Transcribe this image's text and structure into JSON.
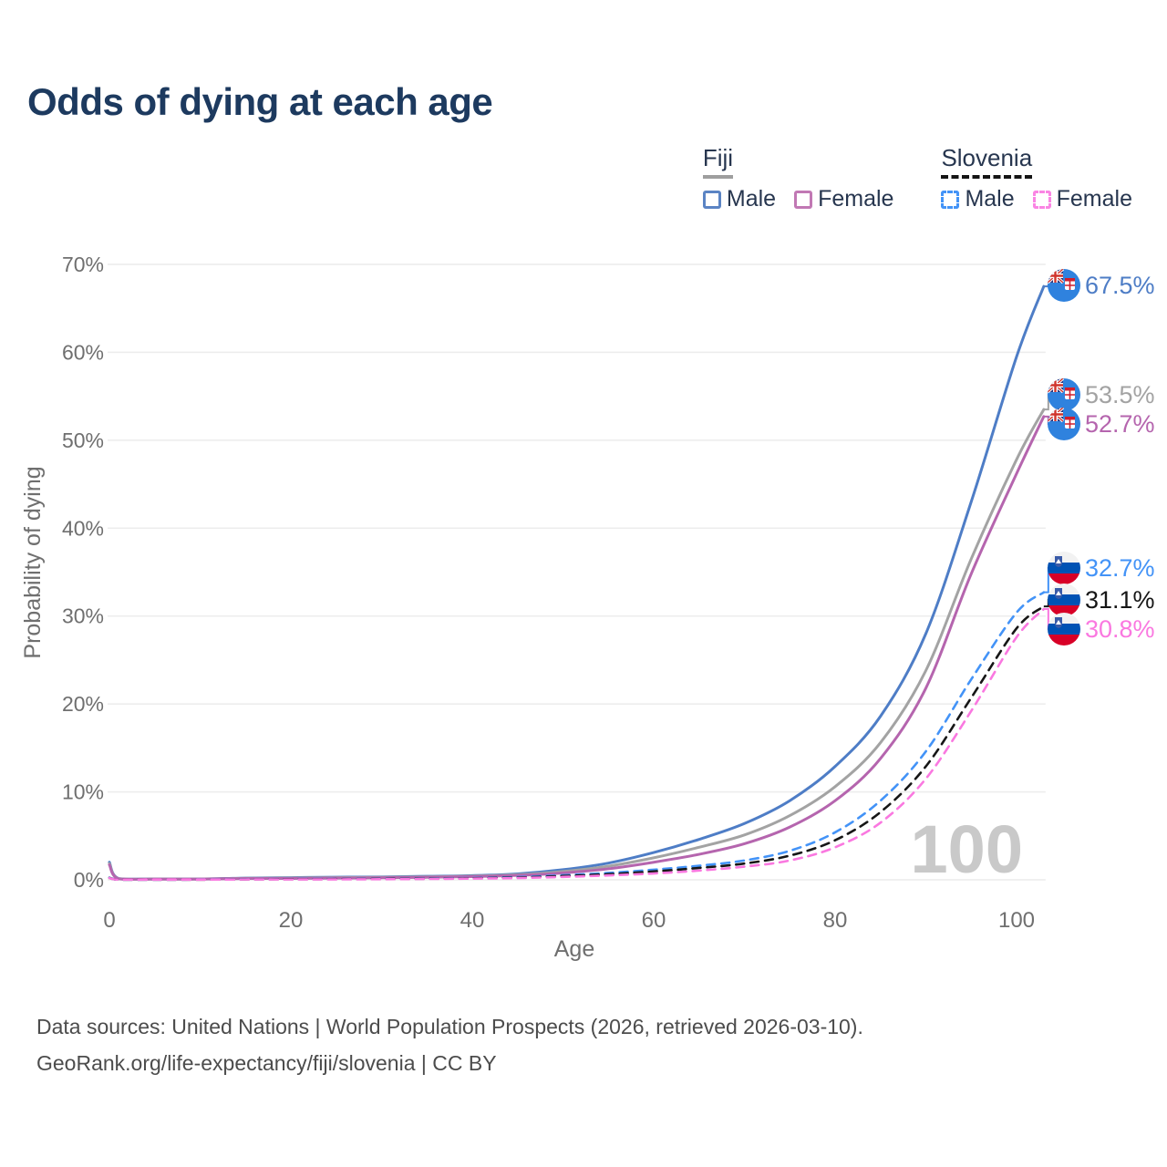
{
  "title": "Odds of dying at each age",
  "legend": {
    "groups": [
      {
        "label": "Fiji",
        "line_style": "solid",
        "underline_color": "#9e9e9e",
        "items": [
          {
            "label": "Male",
            "color": "#5b84c4",
            "dashed": false
          },
          {
            "label": "Female",
            "color": "#c178b4",
            "dashed": false
          }
        ]
      },
      {
        "label": "Slovenia",
        "line_style": "dashed",
        "underline_color": "#141414",
        "items": [
          {
            "label": "Male",
            "color": "#4393f7",
            "dashed": true
          },
          {
            "label": "Female",
            "color": "#fa85e4",
            "dashed": true
          }
        ]
      }
    ]
  },
  "watermark": "100",
  "footer": {
    "line1": "Data sources: United Nations | World Population Prospects (2026, retrieved 2026-03-10).",
    "line2": "GeoRank.org/life-expectancy/fiji/slovenia | CC BY"
  },
  "colors": {
    "grid": "#ececec",
    "axis_text": "#6f6f6f",
    "title": "#1d3a5f",
    "watermark": "#c9c9c9"
  },
  "chart_data": {
    "type": "line",
    "title": "Odds of dying at each age",
    "xlabel": "Age",
    "ylabel": "Probability of dying",
    "xlim": [
      0,
      103
    ],
    "ylim": [
      0,
      70
    ],
    "grid": "horizontal",
    "legend_position": "top-right",
    "x_ticks": [
      0,
      20,
      40,
      60,
      80,
      100
    ],
    "y_ticks": [
      0,
      10,
      20,
      30,
      40,
      50,
      60,
      70
    ],
    "y_tick_labels": [
      "0%",
      "10%",
      "20%",
      "30%",
      "40%",
      "50%",
      "60%",
      "70%"
    ],
    "ages": [
      0,
      1,
      5,
      10,
      15,
      20,
      25,
      30,
      35,
      40,
      45,
      50,
      55,
      60,
      65,
      70,
      75,
      80,
      85,
      90,
      95,
      100,
      103
    ],
    "series": [
      {
        "id": "fiji-male",
        "name": "Fiji Male",
        "country": "Fiji",
        "flag": "fiji",
        "color": "#4e7dc6",
        "dashed": false,
        "end_label": "67.5%",
        "end_value": 67.5,
        "values": [
          2.0,
          0.15,
          0.1,
          0.1,
          0.2,
          0.25,
          0.3,
          0.33,
          0.4,
          0.48,
          0.68,
          1.15,
          1.9,
          3.1,
          4.6,
          6.4,
          9.0,
          12.9,
          18.6,
          28.0,
          43.0,
          59.5,
          67.5
        ]
      },
      {
        "id": "fiji-both-sexes",
        "name": "Fiji",
        "country": "Fiji",
        "flag": "fiji",
        "color": "#a3a3a3",
        "dashed": false,
        "end_label": "53.5%",
        "end_value": 53.5,
        "values": [
          1.85,
          0.13,
          0.09,
          0.09,
          0.17,
          0.21,
          0.25,
          0.28,
          0.34,
          0.42,
          0.58,
          0.95,
          1.55,
          2.5,
          3.7,
          5.1,
          7.3,
          10.6,
          15.6,
          23.8,
          36.5,
          47.8,
          53.5
        ]
      },
      {
        "id": "fiji-female",
        "name": "Fiji Female",
        "country": "Fiji",
        "flag": "fiji",
        "color": "#b565ae",
        "dashed": false,
        "end_label": "52.7%",
        "end_value": 52.7,
        "values": [
          1.7,
          0.12,
          0.08,
          0.08,
          0.14,
          0.16,
          0.19,
          0.23,
          0.29,
          0.36,
          0.5,
          0.78,
          1.25,
          2.0,
          2.9,
          4.1,
          6.0,
          9.0,
          13.8,
          21.8,
          34.8,
          46.2,
          52.7
        ]
      },
      {
        "id": "slovenia-male",
        "name": "Slovenia Male",
        "country": "Slovenia",
        "flag": "slovenia",
        "color": "#4393f7",
        "dashed": true,
        "end_label": "32.7%",
        "end_value": 32.7,
        "values": [
          0.25,
          0.03,
          0.02,
          0.03,
          0.07,
          0.09,
          0.1,
          0.12,
          0.16,
          0.21,
          0.32,
          0.52,
          0.78,
          1.15,
          1.6,
          2.2,
          3.3,
          5.4,
          9.0,
          14.6,
          22.8,
          30.4,
          32.7
        ]
      },
      {
        "id": "slovenia-both-sexes",
        "name": "Slovenia",
        "country": "Slovenia",
        "flag": "slovenia",
        "color": "#161616",
        "dashed": true,
        "end_label": "31.1%",
        "end_value": 31.1,
        "values": [
          0.22,
          0.03,
          0.02,
          0.02,
          0.05,
          0.07,
          0.08,
          0.1,
          0.13,
          0.18,
          0.26,
          0.43,
          0.64,
          0.95,
          1.35,
          1.85,
          2.75,
          4.5,
          7.7,
          12.9,
          20.7,
          28.6,
          31.1
        ]
      },
      {
        "id": "slovenia-female",
        "name": "Slovenia Female",
        "country": "Slovenia",
        "flag": "slovenia",
        "color": "#fa78e0",
        "dashed": true,
        "end_label": "30.8%",
        "end_value": 30.8,
        "values": [
          0.2,
          0.02,
          0.02,
          0.02,
          0.04,
          0.04,
          0.05,
          0.07,
          0.1,
          0.14,
          0.2,
          0.33,
          0.5,
          0.72,
          1.05,
          1.5,
          2.2,
          3.7,
          6.5,
          11.5,
          19.2,
          27.6,
          30.8
        ]
      }
    ]
  }
}
